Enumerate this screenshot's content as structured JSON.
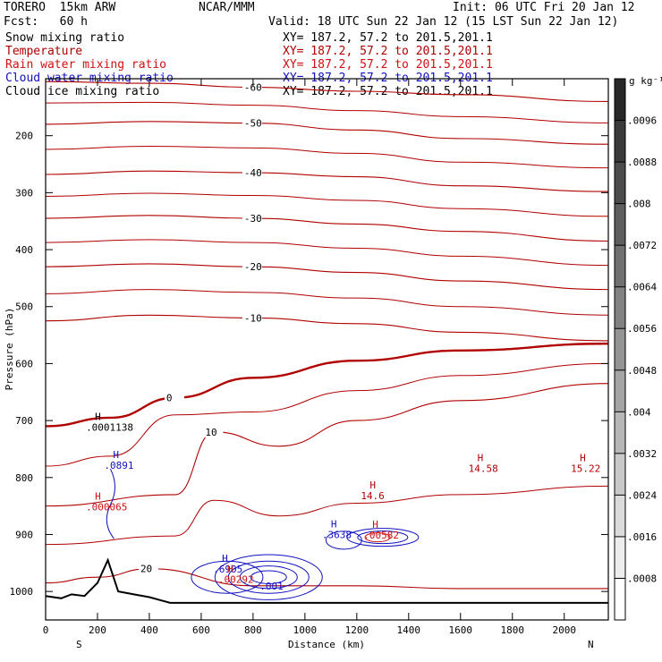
{
  "header": {
    "model": "TORERO  15km ARW",
    "center": "NCAR/MMM",
    "init": "Init: 06 UTC Fri 20 Jan 12",
    "fcst": "Fcst:   60 h",
    "valid": "Valid: 18 UTC Sun 22 Jan 12 (15 LST Sun 22 Jan 12)"
  },
  "fields": [
    {
      "label": "Snow mixing ratio",
      "xy": "XY= 187.2, 57.2 to 201.5,201.1",
      "color": "#000000"
    },
    {
      "label": "Temperature",
      "xy": "XY= 187.2, 57.2 to 201.5,201.1",
      "color": "#b00000"
    },
    {
      "label": "Rain water mixing ratio",
      "xy": "XY= 187.2, 57.2 to 201.5,201.1",
      "color": "#d01010"
    },
    {
      "label": "Cloud water mixing ratio",
      "xy": "XY= 187.2, 57.2 to 201.5,201.1",
      "color": "#1010c0"
    },
    {
      "label": "Cloud ice mixing ratio",
      "xy": "XY= 187.2, 57.2 to 201.5,201.1",
      "color": "#000000"
    }
  ],
  "colorbar": {
    "unit": "g kg⁻¹",
    "ticks": [
      ".0096",
      ".0088",
      ".008",
      ".0072",
      ".0064",
      ".0056",
      ".0048",
      ".004",
      ".0032",
      ".0024",
      ".0016",
      ".0008"
    ]
  },
  "chart_data": {
    "type": "contour",
    "xlabel": "Distance (km)",
    "ylabel": "Pressure (hPa)",
    "xlim": [
      0,
      2170
    ],
    "ylim": [
      100,
      1050
    ],
    "x_ticks": [
      0,
      200,
      400,
      600,
      800,
      1000,
      1200,
      1400,
      1600,
      1800,
      2000
    ],
    "y_ticks": [
      200,
      300,
      400,
      500,
      600,
      700,
      800,
      900,
      1000
    ],
    "x_end_labels": {
      "left": "S",
      "right": "N"
    },
    "temperature_contours": [
      {
        "level": -60,
        "points": [
          [
            0,
            105
          ],
          [
            400,
            108
          ],
          [
            800,
            115
          ],
          [
            1200,
            122
          ],
          [
            1600,
            128
          ],
          [
            2170,
            140
          ]
        ]
      },
      {
        "level": -50,
        "points": [
          [
            0,
            180
          ],
          [
            400,
            175
          ],
          [
            800,
            178
          ],
          [
            1200,
            190
          ],
          [
            1600,
            205
          ],
          [
            2170,
            215
          ]
        ]
      },
      {
        "level": -40,
        "points": [
          [
            0,
            268
          ],
          [
            400,
            262
          ],
          [
            800,
            265
          ],
          [
            1200,
            272
          ],
          [
            1600,
            288
          ],
          [
            2170,
            298
          ]
        ]
      },
      {
        "level": -30,
        "points": [
          [
            0,
            345
          ],
          [
            400,
            340
          ],
          [
            800,
            345
          ],
          [
            1200,
            355
          ],
          [
            1600,
            368
          ],
          [
            2170,
            385
          ]
        ]
      },
      {
        "level": -20,
        "points": [
          [
            0,
            430
          ],
          [
            400,
            425
          ],
          [
            800,
            430
          ],
          [
            1200,
            440
          ],
          [
            1600,
            455
          ],
          [
            2170,
            470
          ]
        ]
      },
      {
        "level": -10,
        "points": [
          [
            0,
            525
          ],
          [
            400,
            515
          ],
          [
            800,
            520
          ],
          [
            1200,
            530
          ],
          [
            1600,
            545
          ],
          [
            2170,
            560
          ]
        ]
      },
      {
        "level": 0,
        "points": [
          [
            0,
            710
          ],
          [
            250,
            695
          ],
          [
            500,
            660
          ],
          [
            800,
            625
          ],
          [
            1200,
            595
          ],
          [
            1600,
            577
          ],
          [
            2170,
            565
          ]
        ]
      },
      {
        "level": 10,
        "points": [
          [
            0,
            850
          ],
          [
            500,
            830
          ],
          [
            650,
            720
          ],
          [
            900,
            745
          ],
          [
            1200,
            700
          ],
          [
            1600,
            665
          ],
          [
            2170,
            635
          ]
        ]
      },
      {
        "level": 20,
        "points": [
          [
            0,
            985
          ],
          [
            200,
            975
          ],
          [
            400,
            960
          ],
          [
            800,
            990
          ],
          [
            1200,
            990
          ],
          [
            1600,
            995
          ],
          [
            2170,
            995
          ]
        ]
      }
    ],
    "maxima_labels": [
      {
        "x": 190,
        "p": 718,
        "mark": "H",
        "value": ".0001138",
        "field": "Cloud ice mixing ratio"
      },
      {
        "x": 260,
        "p": 785,
        "mark": "H",
        "value": ".0891",
        "field": "Cloud water mixing ratio"
      },
      {
        "x": 190,
        "p": 858,
        "mark": "H",
        "value": ".000065",
        "field": "Rain water mixing ratio"
      },
      {
        "x": 1250,
        "p": 838,
        "mark": "H",
        "value": "14.6",
        "field": "Temperature"
      },
      {
        "x": 1665,
        "p": 790,
        "mark": "H",
        "value": "14.58",
        "field": "Temperature"
      },
      {
        "x": 2060,
        "p": 790,
        "mark": "H",
        "value": "15.22",
        "field": "Temperature"
      },
      {
        "x": 1100,
        "p": 906,
        "mark": "H",
        "value": ".3638",
        "field": "Cloud water mixing ratio"
      },
      {
        "x": 1260,
        "p": 907,
        "mark": "H",
        "value": ".00582",
        "field": "Rain water mixing ratio"
      },
      {
        "x": 680,
        "p": 967,
        "mark": "H",
        "value": ".6905",
        "field": "Cloud water mixing ratio"
      },
      {
        "x": 700,
        "p": 985,
        "mark": "H",
        "value": ".00292",
        "field": "Rain water mixing ratio"
      },
      {
        "x": 860,
        "p": 997,
        "mark": "",
        "value": ".001",
        "field": "Cloud water mixing ratio"
      }
    ]
  }
}
